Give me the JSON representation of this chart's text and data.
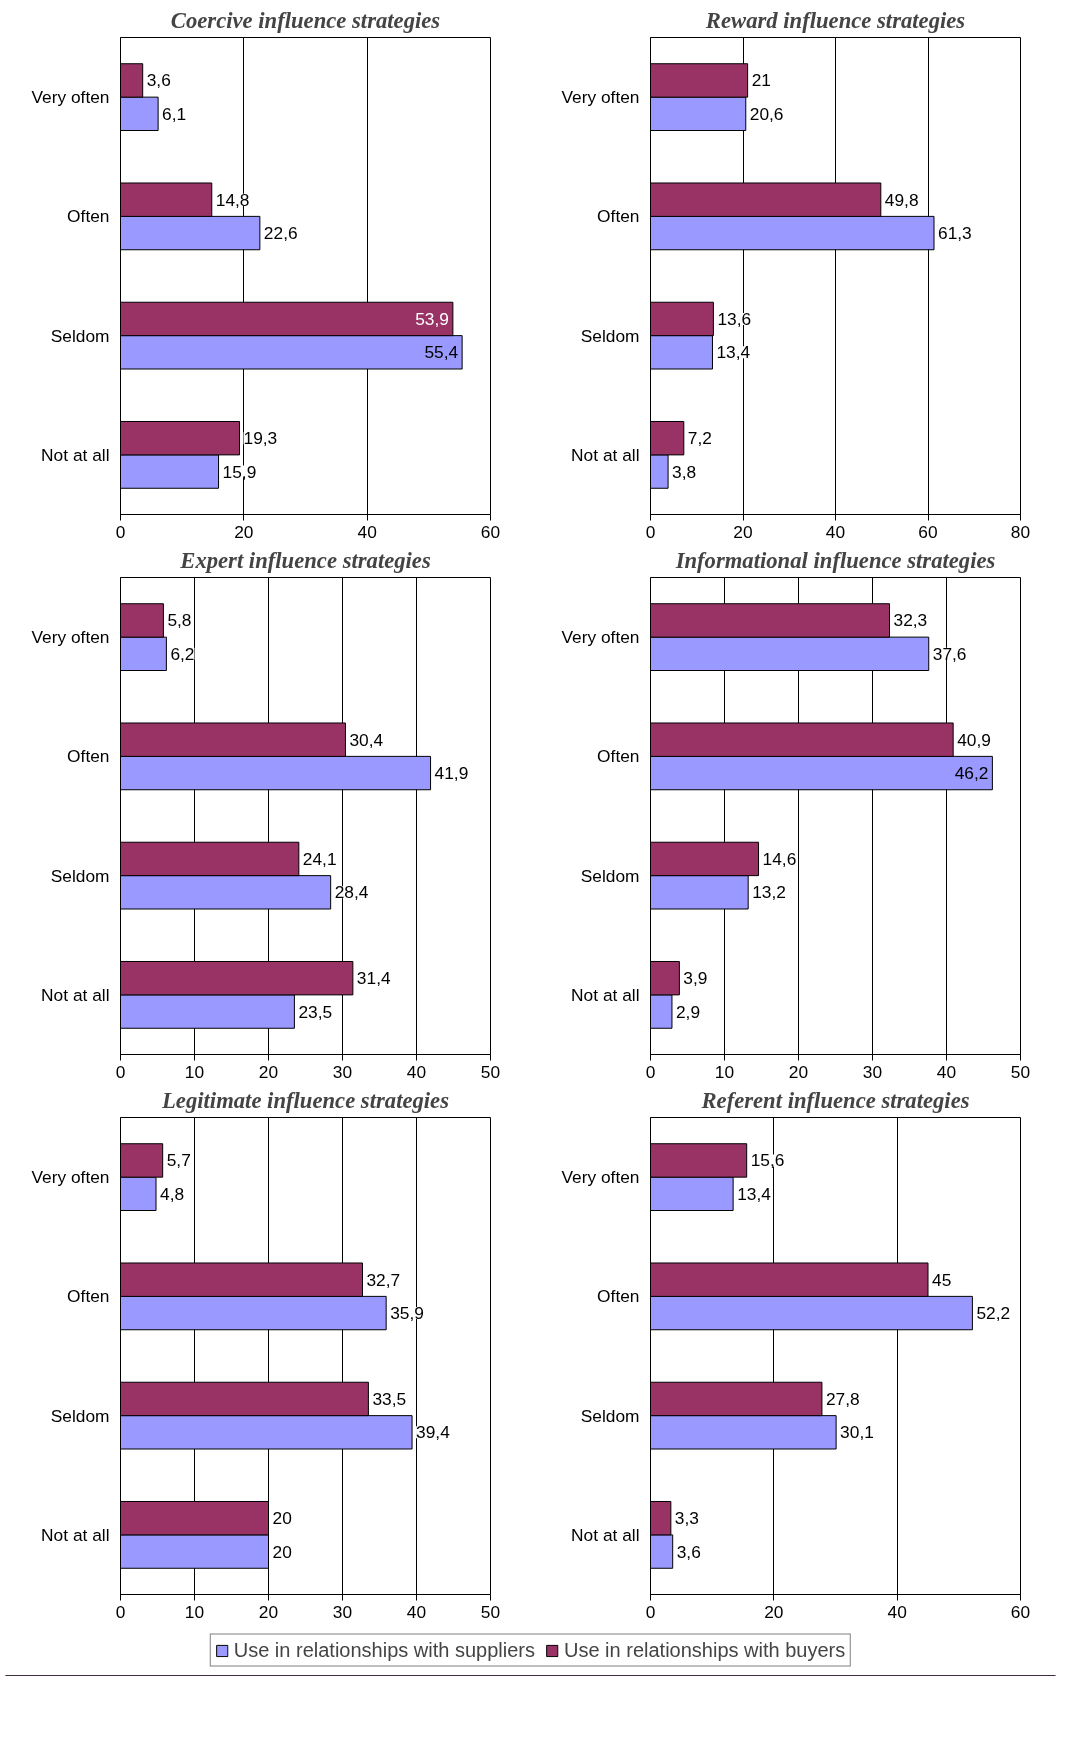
{
  "chart_data": [
    {
      "type": "bar",
      "orientation": "horizontal",
      "title": "Coercive influence strategies",
      "categories": [
        "Very often",
        "Often",
        "Seldom",
        "Not at all"
      ],
      "xlim": [
        0,
        60
      ],
      "xticks": [
        0,
        20,
        40,
        60
      ],
      "grid": "x",
      "series": [
        {
          "color": "#9999ff",
          "values": [
            6.1,
            22.6,
            55.4,
            15.9
          ],
          "value_labels": [
            "6,1",
            "22,6",
            "55,4",
            "15,9"
          ]
        },
        {
          "color": "#993366",
          "values": [
            3.6,
            14.8,
            53.9,
            19.3
          ],
          "value_labels": [
            "3,6",
            "14,8",
            "53,9",
            "19,3"
          ]
        }
      ]
    },
    {
      "type": "bar",
      "orientation": "horizontal",
      "title": "Reward influence strategies",
      "categories": [
        "Very often",
        "Often",
        "Seldom",
        "Not at all"
      ],
      "xlim": [
        0,
        80
      ],
      "xticks": [
        0,
        20,
        40,
        60,
        80
      ],
      "grid": "x",
      "series": [
        {
          "color": "#9999ff",
          "values": [
            20.6,
            61.3,
            13.4,
            3.8
          ],
          "value_labels": [
            "20,6",
            "61,3",
            "13,4",
            "3,8"
          ]
        },
        {
          "color": "#993366",
          "values": [
            21,
            49.8,
            13.6,
            7.2
          ],
          "value_labels": [
            "21",
            "49,8",
            "13,6",
            "7,2"
          ]
        }
      ]
    },
    {
      "type": "bar",
      "orientation": "horizontal",
      "title": "Expert influence strategies",
      "categories": [
        "Very often",
        "Often",
        "Seldom",
        "Not at all"
      ],
      "xlim": [
        0,
        50
      ],
      "xticks": [
        0,
        10,
        20,
        30,
        40,
        50
      ],
      "grid": "x",
      "series": [
        {
          "color": "#9999ff",
          "values": [
            6.2,
            41.9,
            28.4,
            23.5
          ],
          "value_labels": [
            "6,2",
            "41,9",
            "28,4",
            "23,5"
          ]
        },
        {
          "color": "#993366",
          "values": [
            5.8,
            30.4,
            24.1,
            31.4
          ],
          "value_labels": [
            "5,8",
            "30,4",
            "24,1",
            "31,4"
          ]
        }
      ]
    },
    {
      "type": "bar",
      "orientation": "horizontal",
      "title": "Informational influence strategies",
      "categories": [
        "Very often",
        "Often",
        "Seldom",
        "Not at all"
      ],
      "xlim": [
        0,
        50
      ],
      "xticks": [
        0,
        10,
        20,
        30,
        40,
        50
      ],
      "grid": "x",
      "series": [
        {
          "color": "#9999ff",
          "values": [
            37.6,
            46.2,
            13.2,
            2.9
          ],
          "value_labels": [
            "37,6",
            "46,2",
            "13,2",
            "2,9"
          ]
        },
        {
          "color": "#993366",
          "values": [
            32.3,
            40.9,
            14.6,
            3.9
          ],
          "value_labels": [
            "32,3",
            "40,9",
            "14,6",
            "3,9"
          ]
        }
      ]
    },
    {
      "type": "bar",
      "orientation": "horizontal",
      "title": "Legitimate influence strategies",
      "categories": [
        "Very often",
        "Often",
        "Seldom",
        "Not at all"
      ],
      "xlim": [
        0,
        50
      ],
      "xticks": [
        0,
        10,
        20,
        30,
        40,
        50
      ],
      "grid": "x",
      "series": [
        {
          "color": "#9999ff",
          "values": [
            4.8,
            35.9,
            39.4,
            20
          ],
          "value_labels": [
            "4,8",
            "35,9",
            "39,4",
            "20"
          ]
        },
        {
          "color": "#993366",
          "values": [
            5.7,
            32.7,
            33.5,
            20
          ],
          "value_labels": [
            "5,7",
            "32,7",
            "33,5",
            "20"
          ]
        }
      ]
    },
    {
      "type": "bar",
      "orientation": "horizontal",
      "title": "Referent influence strategies",
      "categories": [
        "Very often",
        "Often",
        "Seldom",
        "Not at all"
      ],
      "xlim": [
        0,
        60
      ],
      "xticks": [
        0,
        20,
        40,
        60
      ],
      "grid": "x",
      "legend": "bottom",
      "series": [
        {
          "name": "Use in relationships with suppliers",
          "color": "#9999ff",
          "values": [
            13.4,
            52.2,
            30.1,
            3.6
          ],
          "value_labels": [
            "13,4",
            "52,2",
            "30,1",
            "3,6"
          ]
        },
        {
          "name": "Use in relationships with buyers",
          "color": "#993366",
          "values": [
            15.6,
            45,
            27.8,
            3.3
          ],
          "value_labels": [
            "15,6",
            "45",
            "27,8",
            "3,3"
          ]
        }
      ]
    }
  ]
}
